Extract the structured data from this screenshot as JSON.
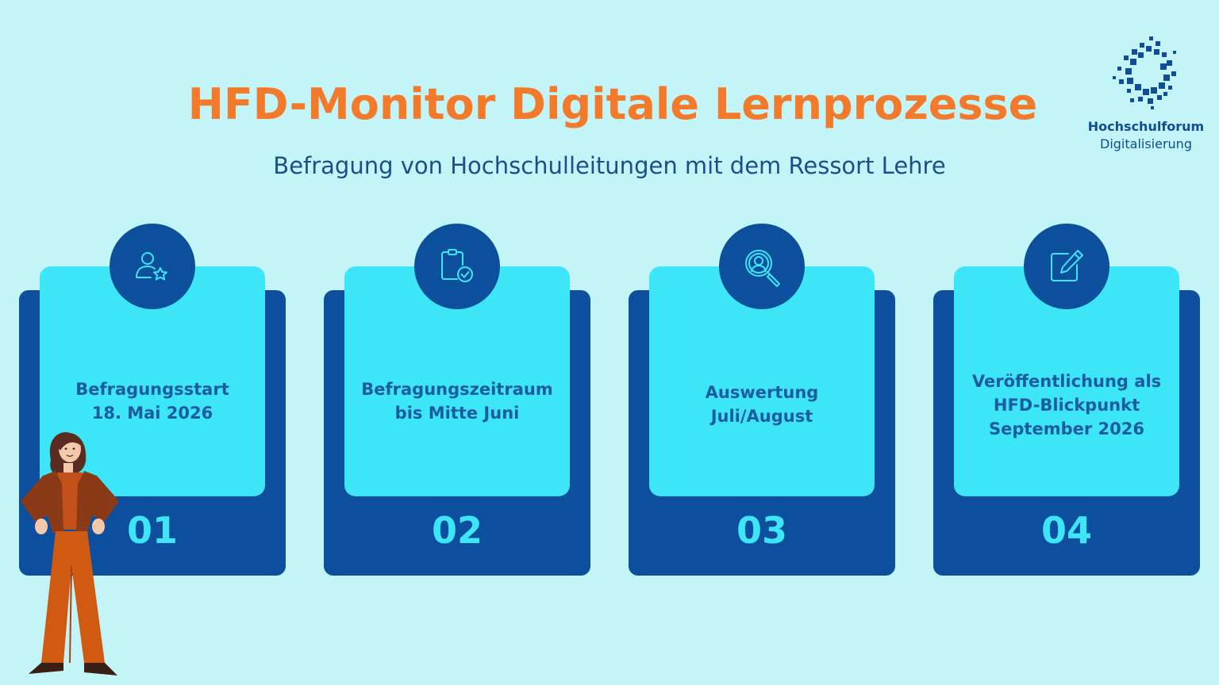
{
  "header": {
    "title": "HFD-Monitor Digitale Lernprozesse",
    "subtitle": "Befragung von Hochschulleitungen mit dem Ressort Lehre"
  },
  "logo": {
    "line1": "Hochschulforum",
    "line2": "Digitalisierung"
  },
  "steps": [
    {
      "icon": "user-star-icon",
      "lines": [
        "Befragungsstart",
        "18. Mai 2026"
      ],
      "number": "01"
    },
    {
      "icon": "clipboard-check-icon",
      "lines": [
        "Befragungszeitraum",
        "bis Mitte Juni"
      ],
      "number": "02"
    },
    {
      "icon": "magnifier-person-icon",
      "lines": [
        "Auswertung",
        "Juli/August"
      ],
      "number": "03"
    },
    {
      "icon": "edit-note-icon",
      "lines": [
        "Veröffentlichung als",
        "HFD-Blickpunkt",
        "September 2026"
      ],
      "number": "04"
    }
  ],
  "colors": {
    "background": "#c2f4f8",
    "title": "#f47a2b",
    "dark_blue": "#0b4f9d",
    "cyan": "#3de6f7"
  }
}
